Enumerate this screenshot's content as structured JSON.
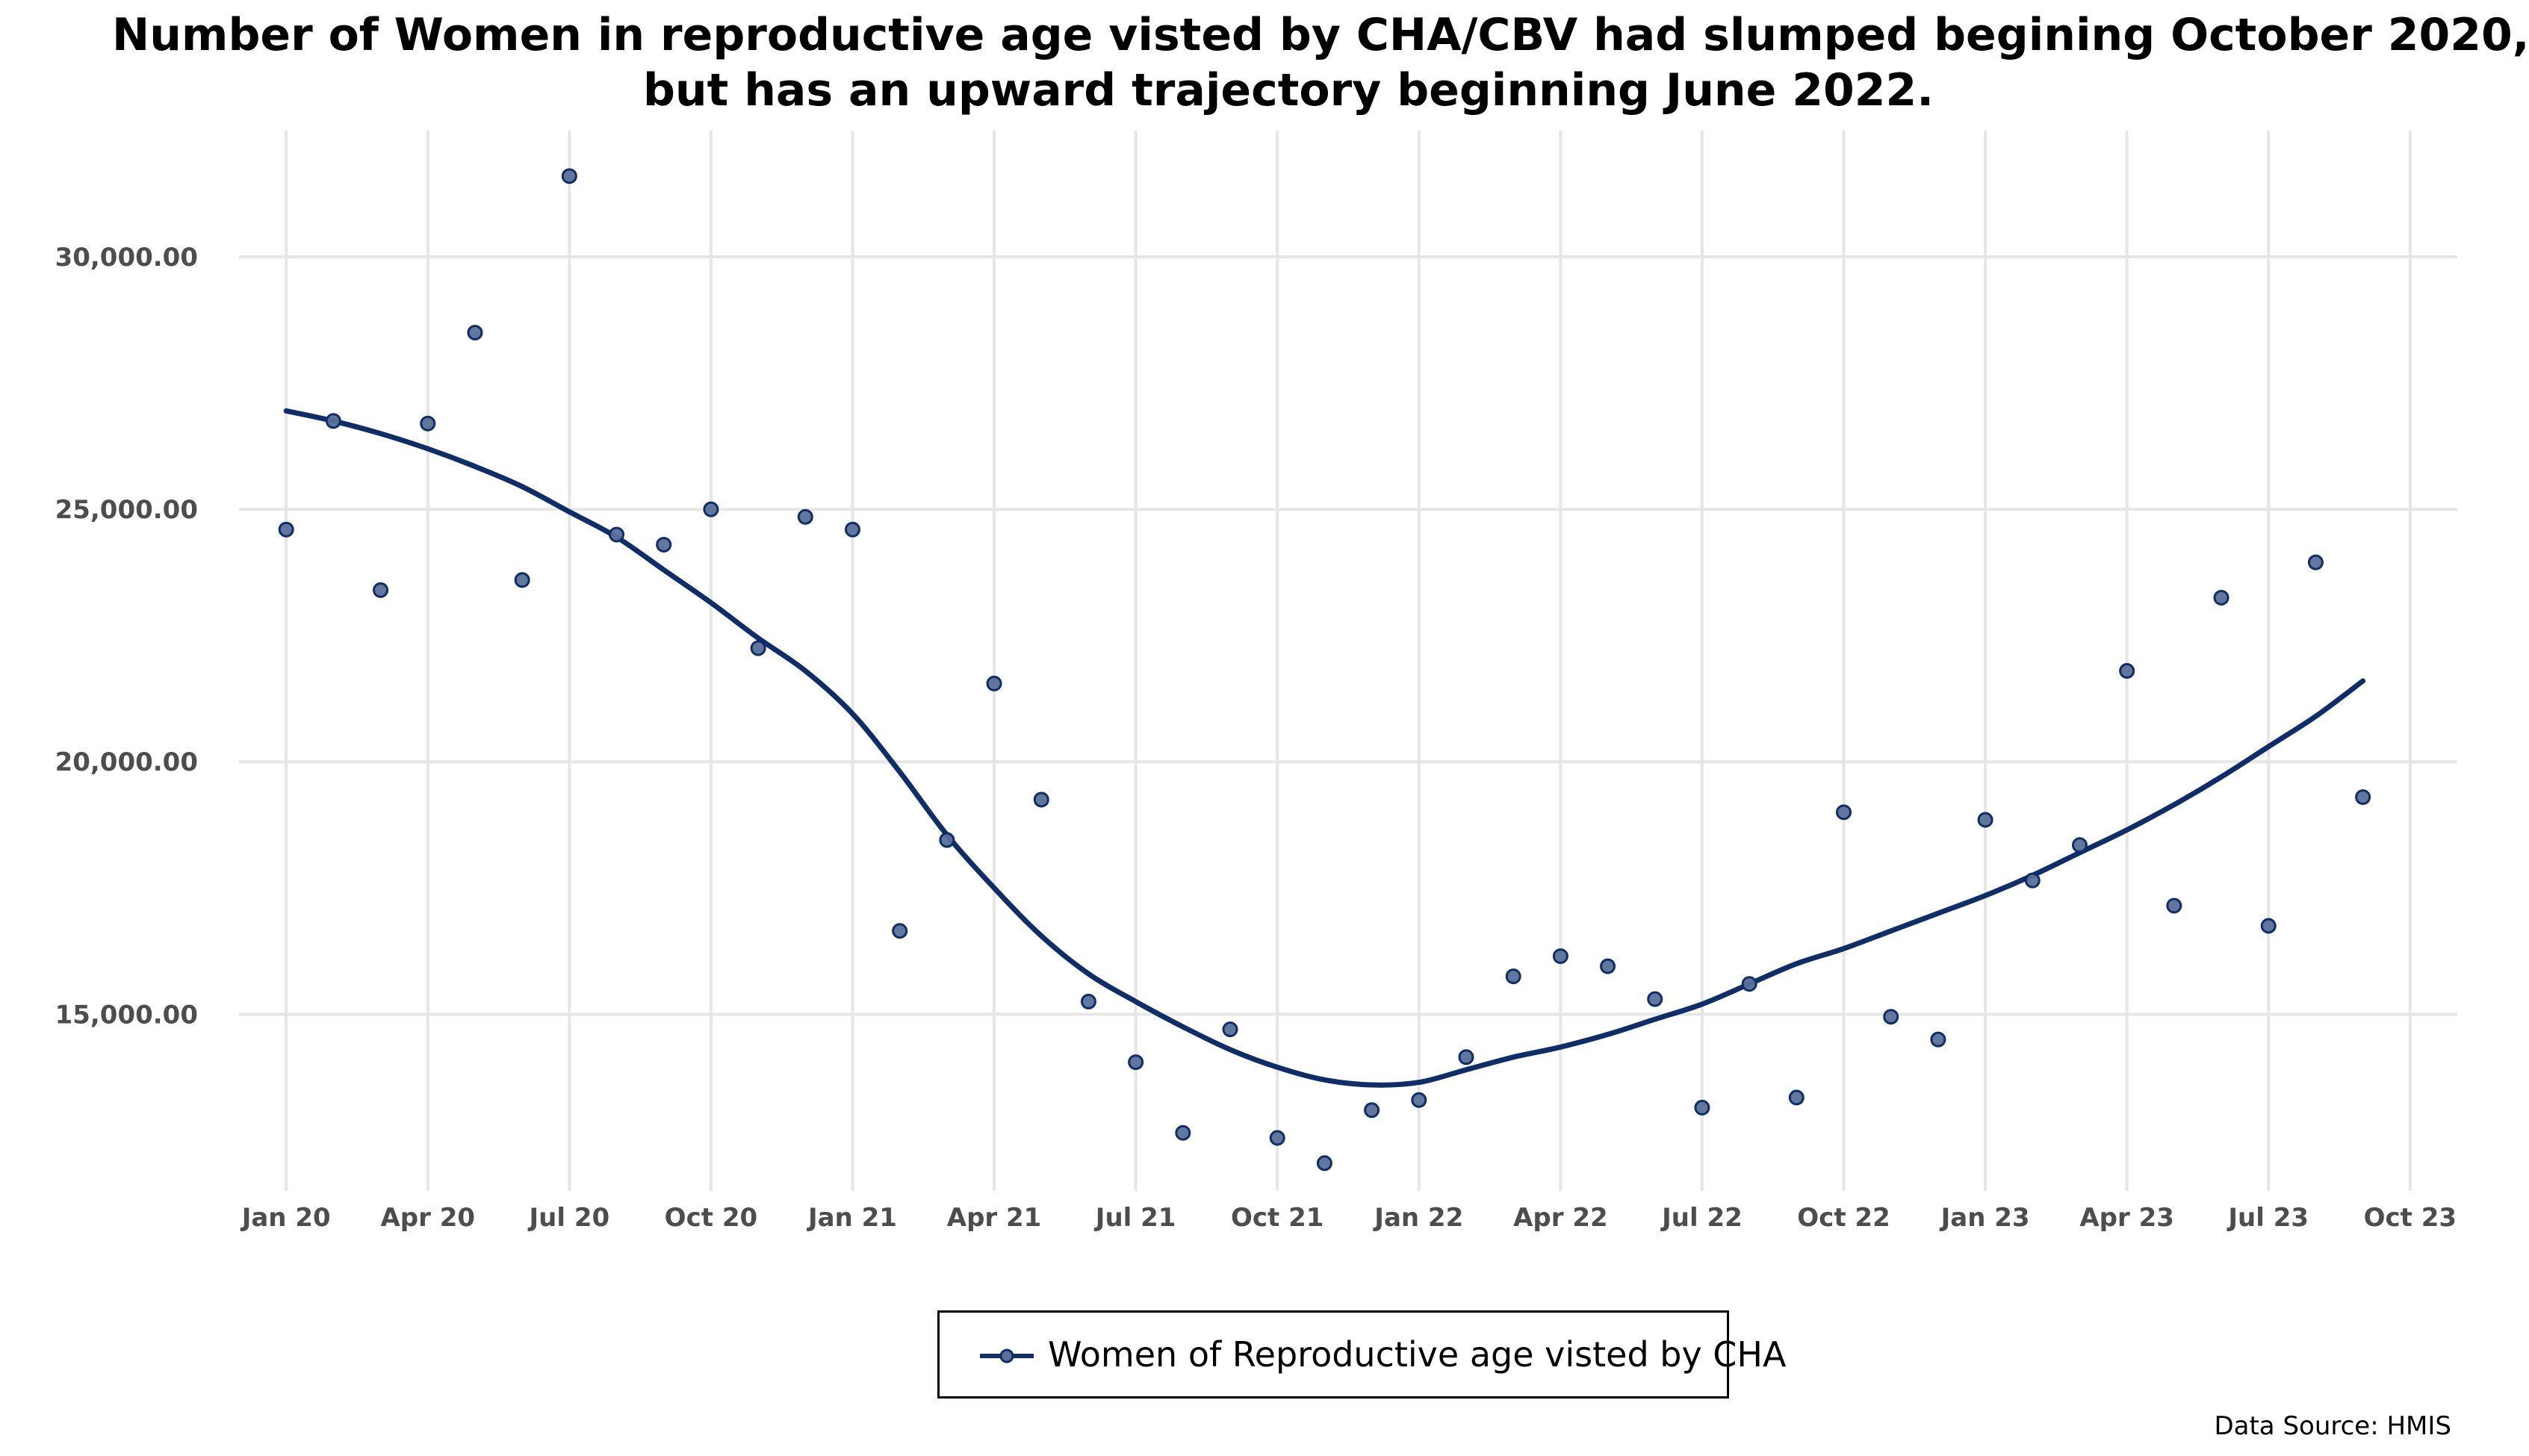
{
  "colors": {
    "series": "#0f2d69",
    "points_fill": "#5a7099",
    "grid": "#e6e6e6",
    "axis_text": "#4d4d4d"
  },
  "chart_data": {
    "type": "scatter",
    "title_lines": [
      "Number of Women in reproductive age visted by CHA/CBV had slumped begining October 2020,",
      "but has an upward trajectory beginning June 2022."
    ],
    "xlabel": "",
    "ylabel": "",
    "x_ticks": [
      "Jan 20",
      "Apr 20",
      "Jul 20",
      "Oct 20",
      "Jan 21",
      "Apr 21",
      "Jul 21",
      "Oct 21",
      "Jan 22",
      "Apr 22",
      "Jul 22",
      "Oct 22",
      "Jan 23",
      "Apr 23",
      "Jul 23",
      "Oct 23"
    ],
    "y_ticks": [
      15000,
      20000,
      25000,
      30000
    ],
    "y_tick_labels": [
      "15,000.00",
      "20,000.00",
      "25,000.00",
      "30,000.00"
    ],
    "ylim": [
      11500,
      32500
    ],
    "xlim": [
      "2019-12",
      "2023-11"
    ],
    "grid": true,
    "legend_position": "bottom",
    "series": [
      {
        "name": "Women of Reproductive age visted by CHA",
        "type": "points",
        "x": [
          "2020-01",
          "2020-02",
          "2020-03",
          "2020-04",
          "2020-05",
          "2020-06",
          "2020-07",
          "2020-08",
          "2020-09",
          "2020-10",
          "2020-11",
          "2020-12",
          "2021-01",
          "2021-02",
          "2021-03",
          "2021-04",
          "2021-05",
          "2021-06",
          "2021-07",
          "2021-08",
          "2021-09",
          "2021-10",
          "2021-11",
          "2021-12",
          "2022-01",
          "2022-02",
          "2022-03",
          "2022-04",
          "2022-05",
          "2022-06",
          "2022-07",
          "2022-08",
          "2022-09",
          "2022-10",
          "2022-11",
          "2022-12",
          "2023-01",
          "2023-02",
          "2023-03",
          "2023-04",
          "2023-05",
          "2023-06",
          "2023-07",
          "2023-08",
          "2023-09"
        ],
        "y": [
          24600,
          26750,
          23400,
          26700,
          28500,
          23600,
          31600,
          24500,
          24300,
          25000,
          22250,
          24850,
          24600,
          16650,
          18450,
          21550,
          19250,
          15250,
          14050,
          12650,
          14700,
          12550,
          12050,
          13100,
          13300,
          14150,
          15750,
          16150,
          15950,
          15300,
          13150,
          15600,
          13350,
          19000,
          14950,
          14500,
          18850,
          17650,
          18350,
          21800,
          17150,
          23250,
          16750,
          23950,
          19300
        ]
      },
      {
        "name": "Women of Reproductive age visted by CHA",
        "type": "smooth",
        "x": [
          "2020-01",
          "2020-02",
          "2020-03",
          "2020-04",
          "2020-05",
          "2020-06",
          "2020-07",
          "2020-08",
          "2020-09",
          "2020-10",
          "2020-11",
          "2020-12",
          "2021-01",
          "2021-02",
          "2021-03",
          "2021-04",
          "2021-05",
          "2021-06",
          "2021-07",
          "2021-08",
          "2021-09",
          "2021-10",
          "2021-11",
          "2021-12",
          "2022-01",
          "2022-02",
          "2022-03",
          "2022-04",
          "2022-05",
          "2022-06",
          "2022-07",
          "2022-08",
          "2022-09",
          "2022-10",
          "2022-11",
          "2022-12",
          "2023-01",
          "2023-02",
          "2023-03",
          "2023-04",
          "2023-05",
          "2023-06",
          "2023-07",
          "2023-08",
          "2023-09"
        ],
        "y": [
          26950,
          26750,
          26500,
          26200,
          25850,
          25450,
          24950,
          24450,
          23800,
          23150,
          22450,
          21800,
          20950,
          19800,
          18550,
          17500,
          16550,
          15800,
          15250,
          14750,
          14300,
          13950,
          13700,
          13600,
          13650,
          13900,
          14150,
          14350,
          14600,
          14900,
          15200,
          15600,
          16000,
          16300,
          16650,
          17000,
          17350,
          17750,
          18200,
          18650,
          19150,
          19700,
          20300,
          20900,
          21600
        ]
      }
    ],
    "source": "Data Source: HMIS"
  }
}
